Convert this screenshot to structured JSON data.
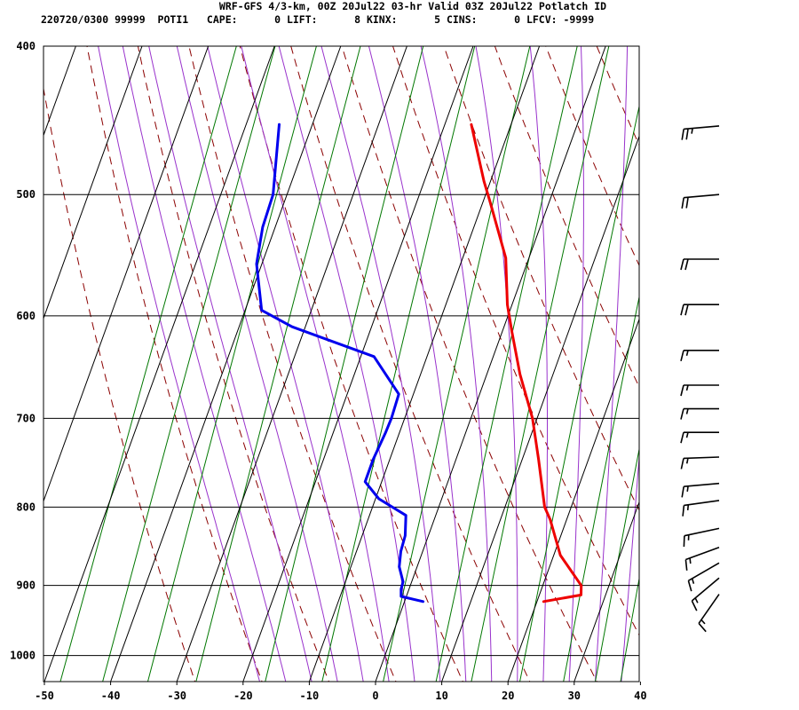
{
  "chart_data": {
    "type": "line",
    "title": "WRF-GFS 4/3-km, 00Z 20Jul22 03-hr Valid 03Z 20Jul22 Potlatch ID",
    "subtitle": "220720/0300 99999  POTI1   CAPE:      0 LIFT:      8 KINX:      5 CINS:      0 LFCV: -9999",
    "x_ticks": [
      -50,
      -40,
      -30,
      -20,
      -10,
      0,
      10,
      20,
      30,
      40
    ],
    "y_ticks": [
      400,
      500,
      600,
      700,
      800,
      900,
      1000
    ],
    "xlim": [
      -50,
      40
    ],
    "ylim": [
      1040,
      400
    ],
    "y_scale": "log",
    "grid": true,
    "colors": {
      "temperature": "#ee0000",
      "dewpoint": "#0000ee",
      "isotherm_grid": "#000000",
      "dry_adiabat": "#8b0000",
      "moist_adiabat": "#9932cc",
      "mixing_ratio": "#007700",
      "wind_barb": "#000000"
    },
    "series": [
      {
        "key": "temperature",
        "points": [
          [
            21.0,
            922
          ],
          [
            26.3,
            913
          ],
          [
            25.8,
            900
          ],
          [
            21.0,
            860
          ],
          [
            17.5,
            815
          ],
          [
            16.0,
            800
          ],
          [
            12.5,
            745
          ],
          [
            9.3,
            700
          ],
          [
            5.0,
            655
          ],
          [
            1.5,
            615
          ],
          [
            -0.7,
            590
          ],
          [
            -3.5,
            550
          ],
          [
            -9.0,
            505
          ],
          [
            -11.0,
            490
          ],
          [
            -16.0,
            450
          ]
        ]
      },
      {
        "key": "dewpoint",
        "points": [
          [
            2.8,
            922
          ],
          [
            -0.8,
            915
          ],
          [
            -1.2,
            905
          ],
          [
            -1.3,
            895
          ],
          [
            -2.7,
            875
          ],
          [
            -3.3,
            855
          ],
          [
            -3.5,
            835
          ],
          [
            -4.5,
            810
          ],
          [
            -9.5,
            790
          ],
          [
            -12.5,
            770
          ],
          [
            -12.5,
            745
          ],
          [
            -12.1,
            715
          ],
          [
            -12.0,
            700
          ],
          [
            -12.2,
            675
          ],
          [
            -18.0,
            638
          ],
          [
            -32.0,
            610
          ],
          [
            -37.5,
            595
          ],
          [
            -40.8,
            555
          ],
          [
            -41.9,
            525
          ],
          [
            -42.1,
            500
          ],
          [
            -45.0,
            450
          ]
        ]
      }
    ],
    "wind_barbs": [
      {
        "pressure": 451,
        "dir_deg": 265,
        "speed_kt": 25
      },
      {
        "pressure": 500,
        "dir_deg": 265,
        "speed_kt": 20
      },
      {
        "pressure": 551,
        "dir_deg": 270,
        "speed_kt": 20
      },
      {
        "pressure": 590,
        "dir_deg": 270,
        "speed_kt": 20
      },
      {
        "pressure": 632,
        "dir_deg": 270,
        "speed_kt": 15
      },
      {
        "pressure": 666,
        "dir_deg": 270,
        "speed_kt": 15
      },
      {
        "pressure": 690,
        "dir_deg": 270,
        "speed_kt": 15
      },
      {
        "pressure": 715,
        "dir_deg": 270,
        "speed_kt": 15
      },
      {
        "pressure": 742,
        "dir_deg": 268,
        "speed_kt": 15
      },
      {
        "pressure": 772,
        "dir_deg": 265,
        "speed_kt": 15
      },
      {
        "pressure": 792,
        "dir_deg": 262,
        "speed_kt": 15
      },
      {
        "pressure": 826,
        "dir_deg": 258,
        "speed_kt": 15
      },
      {
        "pressure": 850,
        "dir_deg": 250,
        "speed_kt": 15
      },
      {
        "pressure": 870,
        "dir_deg": 240,
        "speed_kt": 15
      },
      {
        "pressure": 890,
        "dir_deg": 230,
        "speed_kt": 15
      },
      {
        "pressure": 912,
        "dir_deg": 215,
        "speed_kt": 15
      }
    ]
  }
}
